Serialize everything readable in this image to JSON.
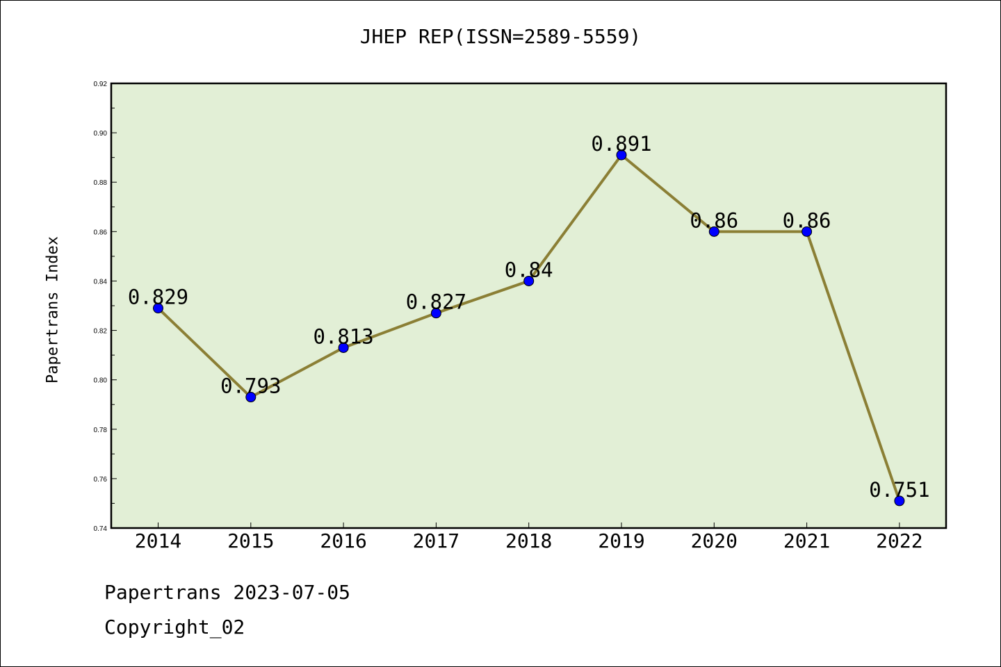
{
  "title": "JHEP REP(ISSN=2589-5559)",
  "footer": {
    "line1": "Papertrans 2023-07-05",
    "line2": "Copyright_02"
  },
  "chart_data": {
    "type": "line",
    "title": "JHEP REP(ISSN=2589-5559)",
    "xlabel": "",
    "ylabel": "Papertrans Index",
    "categories": [
      "2014",
      "2015",
      "2016",
      "2017",
      "2018",
      "2019",
      "2020",
      "2021",
      "2022"
    ],
    "series": [
      {
        "values": [
          0.829,
          0.793,
          0.813,
          0.827,
          0.84,
          0.891,
          0.86,
          0.86,
          0.751
        ],
        "data_labels": [
          "0.829",
          "0.793",
          "0.813",
          "0.827",
          "0.84",
          "0.891",
          "0.86",
          "0.86",
          "0.751"
        ]
      }
    ],
    "ylim": [
      0.74,
      0.92
    ],
    "yticks": [
      "0.74",
      "0.76",
      "0.78",
      "0.80",
      "0.82",
      "0.84",
      "0.86",
      "0.88",
      "0.90",
      "0.92"
    ],
    "grid": false,
    "colors": {
      "plot_background": "#e2efd6",
      "line": "#8b7f35",
      "marker": "#0000ff"
    }
  }
}
